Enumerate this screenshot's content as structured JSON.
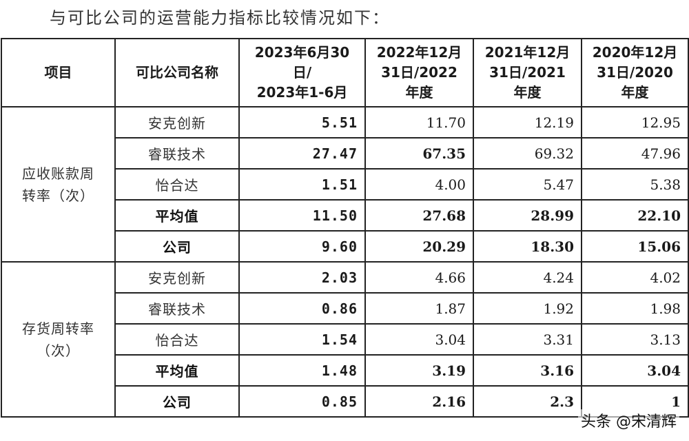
{
  "title": "与可比公司的运营能力指标比较情况如下：",
  "headers": {
    "item": "项目",
    "company_name": "可比公司名称",
    "period_2023": [
      "2023年6月30",
      "日/",
      "2023年1-6月"
    ],
    "period_2022": [
      "2022年12月",
      "31日/2022",
      "年度"
    ],
    "period_2021": [
      "2021年12月",
      "31日/2021",
      "年度"
    ],
    "period_2020": [
      "2020年12月",
      "31日/2020",
      "年度"
    ]
  },
  "groups": [
    {
      "category": [
        "应收账款周",
        "转率（次）"
      ],
      "rows": [
        {
          "name": "安克创新",
          "v2023": "5.51",
          "v2022": "11.70",
          "v2021": "12.19",
          "v2020": "12.95",
          "bold_name": false,
          "bold2022": false,
          "bold2021": false,
          "bold2020": false
        },
        {
          "name": "睿联技术",
          "v2023": "27.47",
          "v2022": "67.35",
          "v2021": "69.32",
          "v2020": "47.96",
          "bold_name": false,
          "bold2022": true,
          "bold2021": false,
          "bold2020": false
        },
        {
          "name": "怡合达",
          "v2023": "1.51",
          "v2022": "4.00",
          "v2021": "5.47",
          "v2020": "5.38",
          "bold_name": false,
          "bold2022": false,
          "bold2021": false,
          "bold2020": false
        },
        {
          "name": "平均值",
          "v2023": "11.50",
          "v2022": "27.68",
          "v2021": "28.99",
          "v2020": "22.10",
          "bold_name": true,
          "bold2022": true,
          "bold2021": true,
          "bold2020": true
        },
        {
          "name": "公司",
          "v2023": "9.60",
          "v2022": "20.29",
          "v2021": "18.30",
          "v2020": "15.06",
          "bold_name": true,
          "bold2022": true,
          "bold2021": true,
          "bold2020": true
        }
      ]
    },
    {
      "category": [
        "存货周转率",
        "（次）"
      ],
      "rows": [
        {
          "name": "安克创新",
          "v2023": "2.03",
          "v2022": "4.66",
          "v2021": "4.24",
          "v2020": "4.02",
          "bold_name": false,
          "bold2022": false,
          "bold2021": false,
          "bold2020": false
        },
        {
          "name": "睿联技术",
          "v2023": "0.86",
          "v2022": "1.87",
          "v2021": "1.92",
          "v2020": "1.98",
          "bold_name": false,
          "bold2022": false,
          "bold2021": false,
          "bold2020": false
        },
        {
          "name": "怡合达",
          "v2023": "1.54",
          "v2022": "3.04",
          "v2021": "3.31",
          "v2020": "3.13",
          "bold_name": false,
          "bold2022": false,
          "bold2021": false,
          "bold2020": false
        },
        {
          "name": "平均值",
          "v2023": "1.48",
          "v2022": "3.19",
          "v2021": "3.16",
          "v2020": "3.04",
          "bold_name": true,
          "bold2022": true,
          "bold2021": true,
          "bold2020": true
        },
        {
          "name": "公司",
          "v2023": "0.85",
          "v2022": "2.16",
          "v2021": "2.3",
          "v2020": "1",
          "bold_name": true,
          "bold2022": true,
          "bold2021": true,
          "bold2020": true
        }
      ]
    }
  ],
  "watermark": "头条 @宋清辉"
}
